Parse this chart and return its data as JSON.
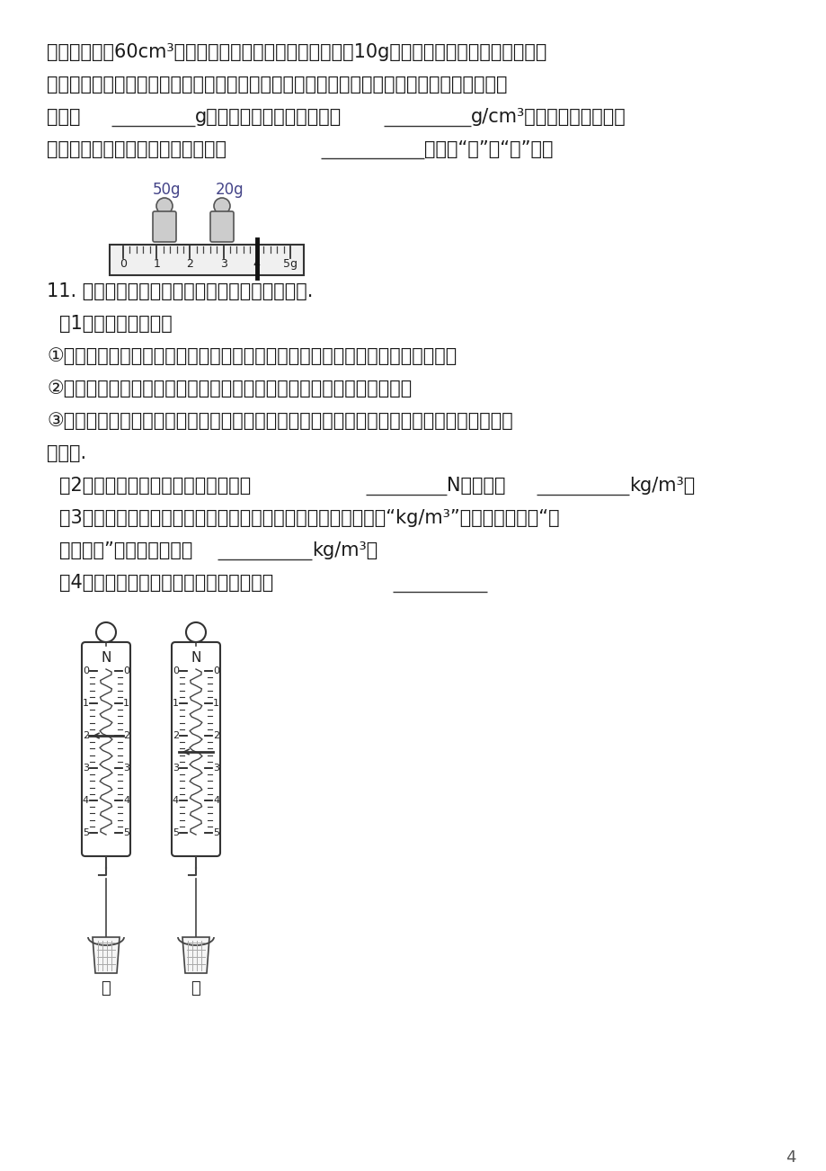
{
  "bg_color": "#ffffff",
  "text_color": "#1a1a1a",
  "page_number": "4",
  "p1l1": "测出其体积为60cm³，然后用天平测出了空烧杯的质量为10g，再将量筒中的盐水倒入烧杯，",
  "p1l2": "测量盐水和烧杯的总质量，天平平衡后右盘中的码码和游码在标尺上的位置如图所示，则其总",
  "p1l3a": "质量是",
  "p1l3b": "g，则他算出该盐水的密度是",
  "p1l3c": "g/cm³．分析该测量过程，",
  "p1l4a": "你认为小江测出的盐水密度比真实值",
  "p1l4b": "（选填“大”、“小”）．",
  "q11t": "11. 小刚同学利用弹簧测力计等器材测量液体密度.",
  "q11_1": "（1）主要步骤如下：",
  "q11_s1": "①把塑料杯挂在弹簧测力计的挂钉上，然后再将测力计的指针调整到零刻度线处；",
  "q11_s2": "②在塑料杯中装入一定体积的水后，弹簧测力计指针的位置如图甲所示；",
  "q11_s3": "③将塑料杯中的水倒尽，再向塑料杯中注入体积相等的待测液体，弹簧测力计指针的位置如图",
  "q11_s3b": "乙所示.",
  "q11_2a": "（2）由此可知，塑料杯中待测液体重",
  "q11_2b": "N；密度为",
  "q11_2c": "kg/m³，",
  "q11_3": "（3）如果小刚同学把这个弹簧测力计面板上的物理量的单位改为“kg/m³”，他改造的这个“液",
  "q11_3b_a": "体密度计”的最大测量值是",
  "q11_3b_b": "kg/m³．",
  "q11_4": "（4）他计算待测液体密度所依据的原理是"
}
